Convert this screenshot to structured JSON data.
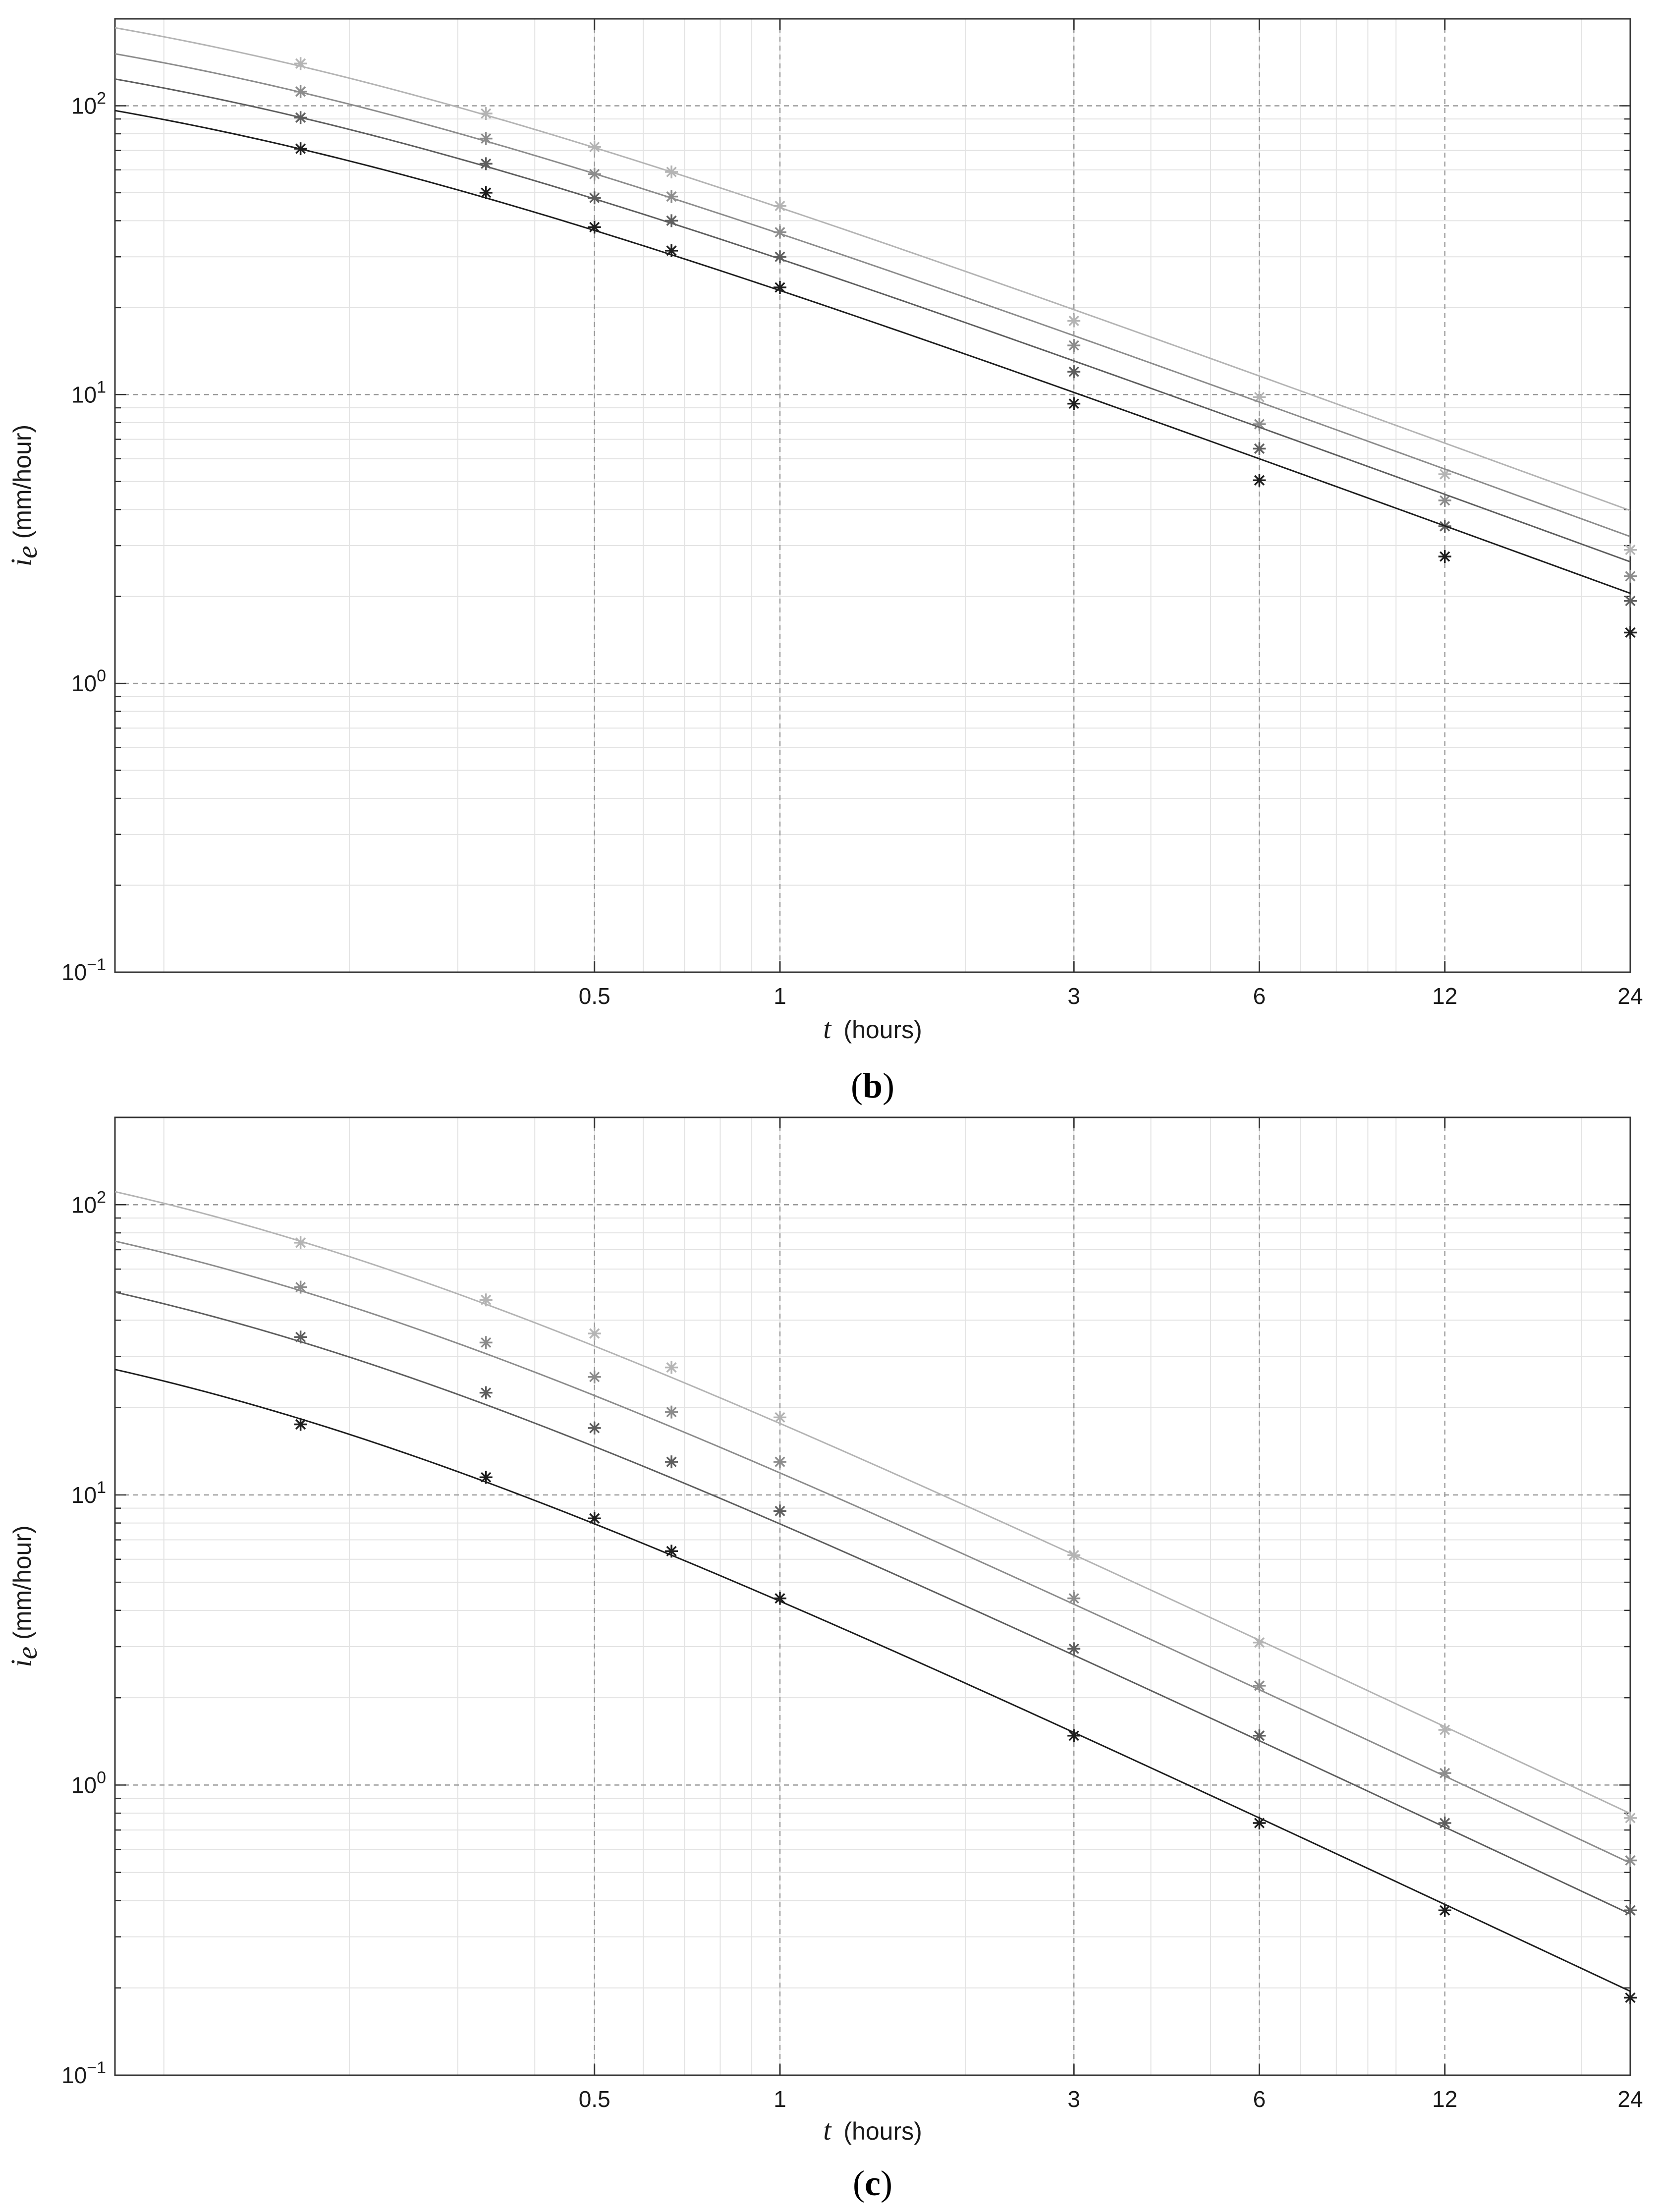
{
  "chart_data": [
    {
      "type": "scatter",
      "panel_label": "b",
      "title": "",
      "xlabel": {
        "var": "t",
        "unit": "(hours)"
      },
      "ylabel": {
        "var": "i",
        "sub": "e",
        "unit": "(mm/hour)"
      },
      "xscale": "log",
      "yscale": "log",
      "xlim": [
        0.0833,
        24
      ],
      "ylim": [
        0.1,
        200
      ],
      "xticks": [
        {
          "value": 0.5,
          "label": "0.5"
        },
        {
          "value": 1,
          "label": "1"
        },
        {
          "value": 3,
          "label": "3"
        },
        {
          "value": 6,
          "label": "6"
        },
        {
          "value": 12,
          "label": "12"
        },
        {
          "value": 24,
          "label": "24"
        }
      ],
      "yticks": [
        {
          "value": 0.1,
          "base": "10",
          "exp": "−1"
        },
        {
          "value": 1,
          "base": "10",
          "exp": "0"
        },
        {
          "value": 10,
          "base": "10",
          "exp": "1"
        },
        {
          "value": 100,
          "base": "10",
          "exp": "2"
        }
      ],
      "grid": true,
      "marker": "asterisk",
      "points_x": [
        0.1667,
        0.3333,
        0.5,
        0.6667,
        1,
        3,
        6,
        12,
        24
      ],
      "series": [
        {
          "color": "#b4b4b4",
          "points": [
            140,
            94,
            72,
            59,
            45,
            18,
            9.8,
            5.3,
            2.9
          ],
          "fit": {
            "a": 47.46,
            "c": 0.09,
            "b": 0.78
          }
        },
        {
          "color": "#8c8c8c",
          "points": [
            112,
            77,
            58,
            48.5,
            36.5,
            14.8,
            7.9,
            4.3,
            2.35
          ],
          "fit": {
            "a": 38.57,
            "c": 0.09,
            "b": 0.78
          }
        },
        {
          "color": "#5e5e5e",
          "points": [
            91,
            63,
            48,
            40,
            30,
            12,
            6.5,
            3.5,
            1.93
          ],
          "fit": {
            "a": 31.54,
            "c": 0.09,
            "b": 0.78
          }
        },
        {
          "color": "#1e1e1e",
          "points": [
            71,
            50,
            38,
            31.5,
            23.5,
            9.3,
            5.05,
            2.75,
            1.5
          ],
          "fit": {
            "a": 24.53,
            "c": 0.09,
            "b": 0.78
          }
        }
      ]
    },
    {
      "type": "scatter",
      "panel_label": "c",
      "title": "",
      "xlabel": {
        "var": "t",
        "unit": "(hours)"
      },
      "ylabel": {
        "var": "i",
        "sub": "e",
        "unit": "(mm/hour)"
      },
      "xscale": "log",
      "yscale": "log",
      "xlim": [
        0.0833,
        24
      ],
      "ylim": [
        0.1,
        200
      ],
      "xticks": [
        {
          "value": 0.5,
          "label": "0.5"
        },
        {
          "value": 1,
          "label": "1"
        },
        {
          "value": 3,
          "label": "3"
        },
        {
          "value": 6,
          "label": "6"
        },
        {
          "value": 12,
          "label": "12"
        },
        {
          "value": 24,
          "label": "24"
        }
      ],
      "yticks": [
        {
          "value": 0.1,
          "base": "10",
          "exp": "−1"
        },
        {
          "value": 1,
          "base": "10",
          "exp": "0"
        },
        {
          "value": 10,
          "base": "10",
          "exp": "1"
        },
        {
          "value": 100,
          "base": "10",
          "exp": "2"
        }
      ],
      "grid": true,
      "marker": "asterisk",
      "points_x": [
        0.1667,
        0.3333,
        0.5,
        0.6667,
        1,
        3,
        6,
        12,
        24
      ],
      "series": [
        {
          "color": "#b4b4b4",
          "points": [
            74,
            47,
            36,
            27.5,
            18.5,
            6.2,
            3.1,
            1.55,
            0.77
          ],
          "fit": {
            "a": 19.22,
            "c": 0.09,
            "b": 1.0
          }
        },
        {
          "color": "#8c8c8c",
          "points": [
            52,
            33.5,
            25.5,
            19.3,
            13,
            4.4,
            2.2,
            1.1,
            0.55
          ],
          "fit": {
            "a": 12.98,
            "c": 0.09,
            "b": 1.0
          }
        },
        {
          "color": "#5e5e5e",
          "points": [
            35,
            22.5,
            17,
            13,
            8.8,
            2.95,
            1.48,
            0.74,
            0.37
          ],
          "fit": {
            "a": 8.66,
            "c": 0.09,
            "b": 1.0
          }
        },
        {
          "color": "#1e1e1e",
          "points": [
            17.5,
            11.5,
            8.3,
            6.4,
            4.4,
            1.48,
            0.74,
            0.37,
            0.185
          ],
          "fit": {
            "a": 4.69,
            "c": 0.09,
            "b": 1.0
          }
        }
      ]
    }
  ]
}
